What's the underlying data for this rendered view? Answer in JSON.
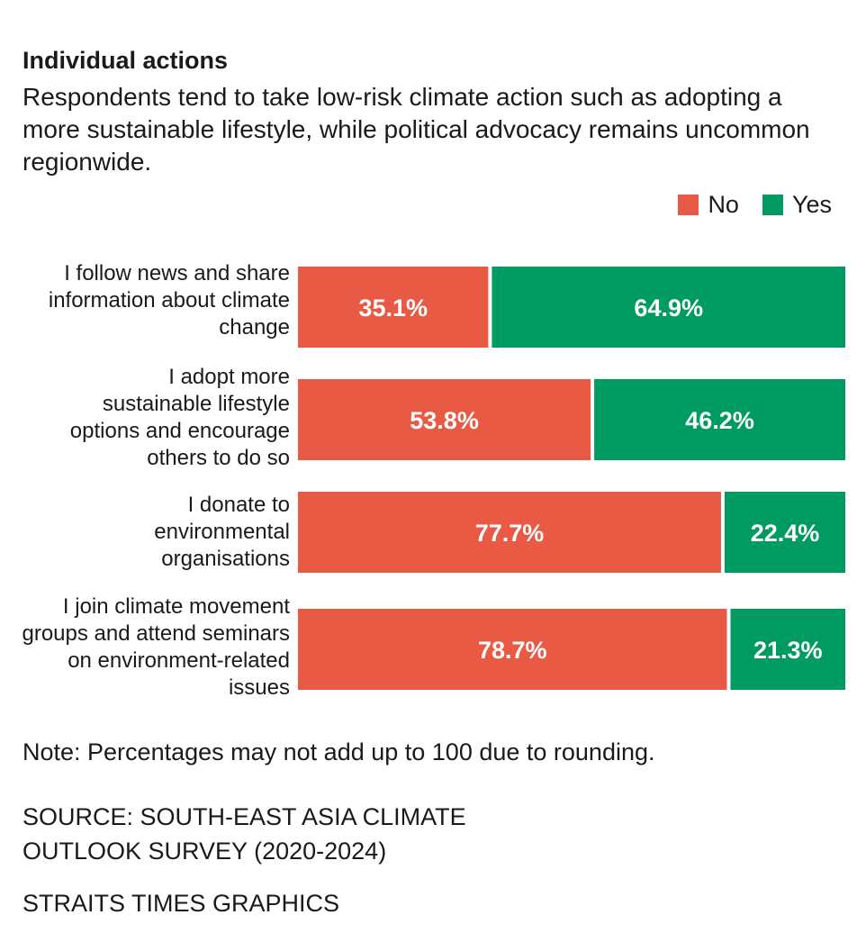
{
  "chart_data": {
    "type": "bar",
    "orientation": "horizontal-stacked",
    "title": "Individual actions",
    "subtitle": "Respondents tend to take low-risk climate action such as adopting a more sustainable lifestyle, while political advocacy remains uncommon regionwide.",
    "categories": [
      "I follow news and share information about climate change",
      "I adopt more sustainable lifestyle options and encourage others to do so",
      "I donate to environmental organisations",
      "I join climate movement groups and attend seminars on environment-related issues"
    ],
    "series": [
      {
        "name": "No",
        "color": "#e85a43",
        "values": [
          35.1,
          53.8,
          77.7,
          78.7
        ],
        "labels": [
          "35.1%",
          "53.8%",
          "77.7%",
          "78.7%"
        ]
      },
      {
        "name": "Yes",
        "color": "#009a63",
        "values": [
          64.9,
          46.2,
          22.4,
          21.3
        ],
        "labels": [
          "64.9%",
          "46.2%",
          "22.4%",
          "21.3%"
        ]
      }
    ],
    "xlim": [
      0,
      100
    ],
    "legend": "top-right",
    "note": "Note: Percentages may not add up to 100 due to rounding.",
    "source": "SOURCE: SOUTH-EAST ASIA CLIMATE OUTLOOK SURVEY (2020-2024)",
    "credit": "STRAITS TIMES GRAPHICS"
  }
}
